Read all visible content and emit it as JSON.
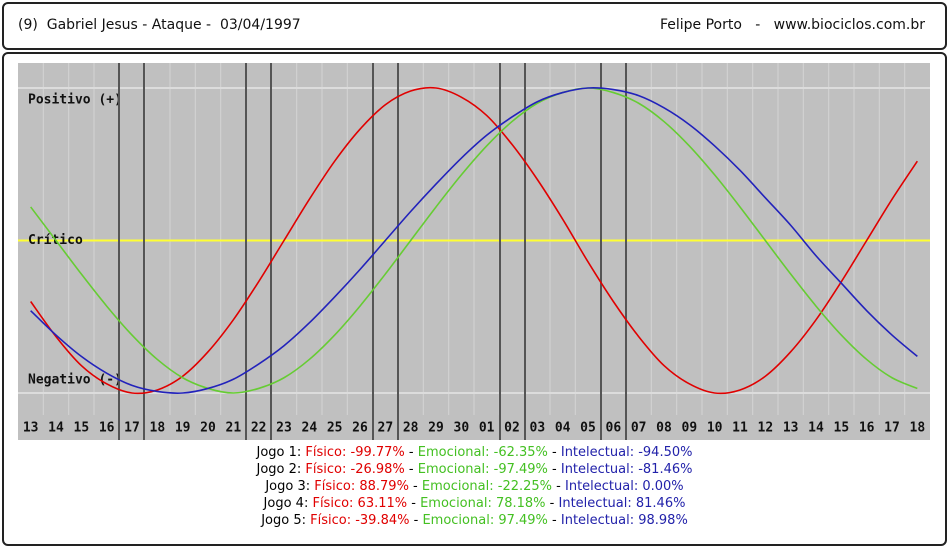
{
  "header": {
    "left": "(9)  Gabriel Jesus - Ataque -  03/04/1997",
    "right": "Felipe Porto   -   www.biociclos.com.br"
  },
  "chart_data": {
    "type": "line",
    "categories": [
      "13",
      "14",
      "15",
      "16",
      "17",
      "18",
      "19",
      "20",
      "21",
      "22",
      "23",
      "24",
      "25",
      "26",
      "27",
      "28",
      "29",
      "30",
      "01",
      "02",
      "03",
      "04",
      "05",
      "06",
      "07",
      "08",
      "09",
      "10",
      "11",
      "12",
      "13",
      "14",
      "15",
      "16",
      "17",
      "18"
    ],
    "ylim": [
      -100,
      100
    ],
    "yticks": [
      {
        "value": 100,
        "label": "Positivo (+)"
      },
      {
        "value": 0,
        "label": "Crítico"
      },
      {
        "value": -100,
        "label": "Negativo (-)"
      }
    ],
    "series": [
      {
        "name": "Físico",
        "color": "#e00000",
        "values": [
          -40,
          -63,
          -82,
          -94,
          -100,
          -98,
          -89,
          -73,
          -52,
          -27,
          0,
          27,
          52,
          73,
          89,
          98,
          100,
          94,
          82,
          63,
          40,
          14,
          -14,
          -40,
          -63,
          -82,
          -94,
          -100,
          -98,
          -89,
          -73,
          -52,
          -27,
          0,
          27,
          52
        ]
      },
      {
        "name": "Emocional",
        "color": "#66cc33",
        "values": [
          22,
          0,
          -22,
          -43,
          -62,
          -78,
          -90,
          -97,
          -100,
          -97,
          -90,
          -78,
          -62,
          -43,
          -22,
          0,
          22,
          43,
          62,
          78,
          90,
          97,
          100,
          97,
          90,
          78,
          62,
          43,
          22,
          0,
          -22,
          -43,
          -62,
          -78,
          -90,
          -97
        ]
      },
      {
        "name": "Intelectual",
        "color": "#2222bb",
        "values": [
          -46,
          -62,
          -76,
          -87,
          -95,
          -99,
          -100,
          -97,
          -91,
          -81,
          -69,
          -54,
          -37,
          -19,
          0,
          19,
          37,
          54,
          69,
          81,
          91,
          97,
          100,
          99,
          95,
          87,
          76,
          62,
          46,
          28,
          10,
          -10,
          -28,
          -46,
          -62,
          -76
        ]
      }
    ]
  },
  "games": {
    "separator": " - ",
    "rows": [
      {
        "name": "Jogo 1: ",
        "parts": [
          "Físico: -99.77%",
          "Emocional: -62.35%",
          "Intelectual: -94.50%"
        ]
      },
      {
        "name": "Jogo 2: ",
        "parts": [
          "Físico: -26.98%",
          "Emocional: -97.49%",
          "Intelectual: -81.46%"
        ]
      },
      {
        "name": "Jogo 3: ",
        "parts": [
          "Físico: 88.79%",
          "Emocional: -22.25%",
          "Intelectual: 0.00%"
        ]
      },
      {
        "name": "Jogo 4: ",
        "parts": [
          "Físico: 63.11%",
          "Emocional: 78.18%",
          "Intelectual: 81.46%"
        ]
      },
      {
        "name": "Jogo 5: ",
        "parts": [
          "Físico: -39.84%",
          "Emocional: 97.49%",
          "Intelectual: 98.98%"
        ]
      }
    ]
  }
}
